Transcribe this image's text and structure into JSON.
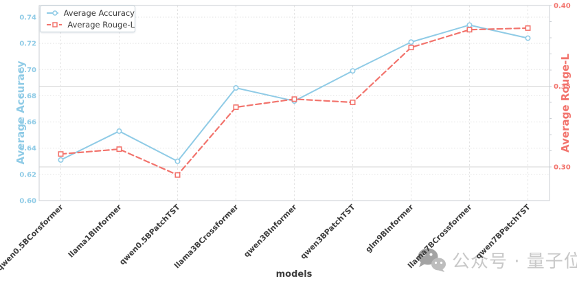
{
  "chart_data": {
    "type": "line",
    "title": "",
    "xlabel": "models",
    "categories": [
      "qwen0.5BCorsformer",
      "llama1BInformer",
      "qwen0.5BPatchTST",
      "llama3BCrossformer",
      "qwen3BInformer",
      "qwen3BPatchTST",
      "glm9BInformer",
      "llama7BCrossformer",
      "qwen7BPatchTST"
    ],
    "series": [
      {
        "name": "Average Accuracy",
        "axis": "left",
        "color": "#8FCBE6",
        "marker": "circle",
        "line_style": "solid",
        "values": [
          0.631,
          0.653,
          0.63,
          0.686,
          0.676,
          0.699,
          0.721,
          0.734,
          0.724
        ]
      },
      {
        "name": "Average Rouge-L",
        "axis": "right",
        "color": "#F2736C",
        "marker": "square",
        "line_style": "dashed",
        "values": [
          0.308,
          0.311,
          0.295,
          0.337,
          0.342,
          0.34,
          0.374,
          0.385,
          0.386
        ]
      }
    ],
    "axes": {
      "left": {
        "label": "Average Accuracy",
        "color": "#8FCBE6",
        "ticks": [
          "0.60",
          "0.62",
          "0.64",
          "0.66",
          "0.68",
          "0.70",
          "0.72",
          "0.74"
        ],
        "range": [
          0.6,
          0.749
        ]
      },
      "right": {
        "label": "Average Rouge-L",
        "color": "#F2736C",
        "ticks": [
          "0.30",
          "0.35",
          "0.40"
        ],
        "range": [
          0.279,
          0.4
        ]
      }
    },
    "legend": {
      "position": "upper left",
      "items": [
        "Average Accuracy",
        "Average Rouge-L"
      ]
    },
    "grid": {
      "horizontal_dotted_on_left_ticks": true,
      "horizontal_solid_on_right_ticks": true,
      "vertical_dotted_on_categories": true
    }
  },
  "watermark": {
    "icon": "wechat-icon",
    "text": "公众号 · 量子位"
  },
  "colors": {
    "grid_dotted": "#e2e2e2",
    "grid_solid": "#d5d5d5",
    "border": "#c9ced3",
    "x_tick_text": "#3d3d3d",
    "legend_text": "#3a3a3a",
    "watermark_text": "#c8c8c8",
    "watermark_icon_dark": "#a3a3a3",
    "watermark_icon_light": "#bdbdbd"
  }
}
